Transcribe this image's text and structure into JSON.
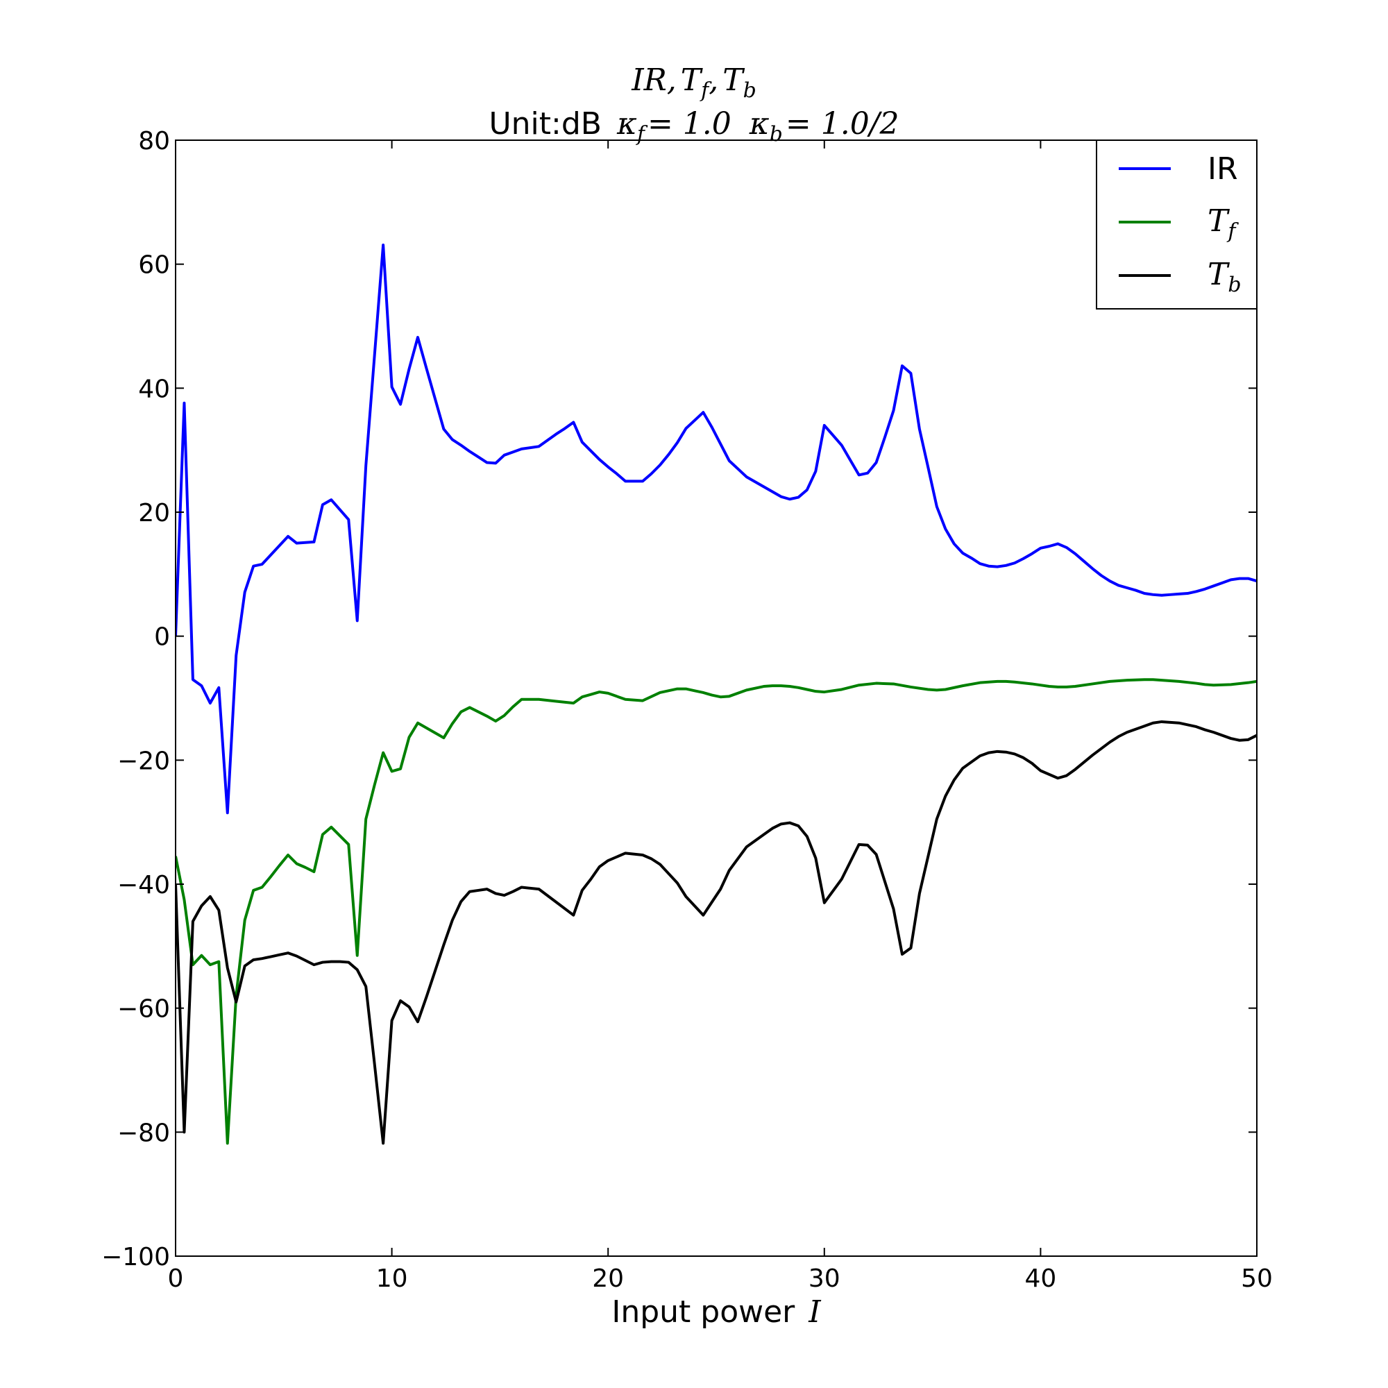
{
  "chart_data": {
    "type": "line",
    "title_line1": {
      "parts": [
        "IR",
        ",",
        "T",
        "f",
        ",",
        "T",
        "b"
      ]
    },
    "title_line2": {
      "prefix": "Unit:dB",
      "kf": "κ",
      "kf_sub": "f",
      "kf_val": "= 1.0",
      "kb": "κ",
      "kb_sub": "b",
      "kb_val": "= 1.0/2"
    },
    "xlabel_text": "Input power",
    "xlabel_math": "I",
    "xlim": [
      0,
      50
    ],
    "ylim": [
      -100,
      80
    ],
    "xticks": [
      0,
      10,
      20,
      30,
      40,
      50
    ],
    "yticks": [
      80,
      60,
      40,
      20,
      0,
      -20,
      -40,
      -60,
      -80,
      -100
    ],
    "ytick_labels": [
      "80",
      "60",
      "40",
      "20",
      "0",
      "−20",
      "−40",
      "−60",
      "−80",
      "−100"
    ],
    "legend_position": "top-right",
    "series": [
      {
        "name": "IR",
        "legend_main": "IR",
        "legend_sub": "",
        "color": "#0000ff",
        "x": [
          0,
          0.4,
          0.8,
          1.2,
          1.6,
          2.0,
          2.4,
          2.8,
          3.2,
          3.6,
          4.0,
          4.4,
          4.8,
          5.2,
          5.6,
          6.0,
          6.4,
          6.8,
          7.2,
          7.6,
          8.0,
          8.4,
          8.8,
          9.2,
          9.6,
          10.0,
          10.4,
          10.8,
          11.2,
          11.6,
          12.0,
          12.4,
          12.8,
          13.2,
          13.6,
          14.0,
          14.4,
          14.8,
          15.2,
          15.6,
          16.0,
          16.4,
          16.8,
          17.2,
          17.6,
          18.0,
          18.4,
          18.8,
          19.2,
          19.6,
          20.0,
          20.4,
          20.8,
          21.2,
          21.6,
          22.0,
          22.4,
          22.8,
          23.2,
          23.6,
          24.0,
          24.4,
          24.8,
          25.2,
          25.6,
          26.0,
          26.4,
          26.8,
          27.2,
          27.6,
          28.0,
          28.4,
          28.8,
          29.2,
          29.6,
          30.0,
          30.4,
          30.8,
          31.2,
          31.6,
          32.0,
          32.4,
          32.8,
          33.2,
          33.6,
          34.0,
          34.4,
          34.8,
          35.2,
          35.6,
          36.0,
          36.4,
          36.8,
          37.2,
          37.6,
          38.0,
          38.4,
          38.8,
          39.2,
          39.6,
          40.0,
          40.4,
          40.8,
          41.2,
          41.6,
          42.0,
          42.4,
          42.8,
          43.2,
          43.6,
          44.0,
          44.4,
          44.8,
          45.2,
          45.6,
          46.0,
          46.4,
          46.8,
          47.2,
          47.6,
          48.0,
          48.4,
          48.8,
          49.2,
          49.6,
          50.0
        ],
        "y": [
          0,
          37.6,
          -7,
          -8,
          -10.8,
          -8.3,
          -28.5,
          -3.1,
          7.1,
          11.3,
          11.6,
          13.1,
          14.6,
          16.1,
          15.0,
          15.1,
          15.2,
          21.2,
          22.0,
          20.4,
          18.8,
          2.5,
          27.5,
          45.3,
          63.1,
          40.2,
          37.4,
          43.1,
          48.2,
          43.2,
          38.3,
          33.4,
          31.7,
          30.8,
          29.8,
          28.9,
          28.0,
          27.9,
          29.2,
          29.7,
          30.2,
          30.4,
          30.6,
          31.6,
          32.6,
          33.5,
          34.5,
          31.3,
          29.9,
          28.5,
          27.3,
          26.2,
          25.0,
          25.0,
          25.0,
          26.2,
          27.6,
          29.3,
          31.2,
          33.5,
          34.8,
          36.1,
          33.7,
          31.0,
          28.3,
          27.0,
          25.7,
          24.9,
          24.1,
          23.3,
          22.5,
          22.1,
          22.4,
          23.6,
          26.6,
          34.0,
          32.4,
          30.8,
          28.4,
          26.0,
          26.3,
          28.0,
          32.1,
          36.4,
          43.6,
          42.4,
          33.4,
          27.2,
          20.9,
          17.3,
          14.9,
          13.4,
          12.6,
          11.7,
          11.3,
          11.2,
          11.4,
          11.8,
          12.5,
          13.3,
          14.2,
          14.5,
          14.9,
          14.3,
          13.3,
          12.1,
          10.9,
          9.8,
          8.9,
          8.2,
          7.8,
          7.4,
          6.9,
          6.7,
          6.6,
          6.7,
          6.8,
          6.9,
          7.2,
          7.6,
          8.1,
          8.6,
          9.1,
          9.3,
          9.3,
          8.9
        ]
      },
      {
        "name": "T_f",
        "legend_main": "T",
        "legend_sub": "f",
        "color": "#008000",
        "x": [
          0,
          0.4,
          0.8,
          1.2,
          1.6,
          2.0,
          2.4,
          2.8,
          3.2,
          3.6,
          4.0,
          4.4,
          4.8,
          5.2,
          5.6,
          6.0,
          6.4,
          6.8,
          7.2,
          7.6,
          8.0,
          8.4,
          8.8,
          9.2,
          9.6,
          10.0,
          10.4,
          10.8,
          11.2,
          11.6,
          12.0,
          12.4,
          12.8,
          13.2,
          13.6,
          14.0,
          14.4,
          14.8,
          15.2,
          15.6,
          16.0,
          16.8,
          17.6,
          18.4,
          18.8,
          19.2,
          19.6,
          20.0,
          20.8,
          21.6,
          22.4,
          23.2,
          23.6,
          24.0,
          24.4,
          24.8,
          25.2,
          25.6,
          26.4,
          27.2,
          27.6,
          28.0,
          28.4,
          28.8,
          29.2,
          29.6,
          30.0,
          30.8,
          31.6,
          32.4,
          33.2,
          34.0,
          34.8,
          35.2,
          35.6,
          36.4,
          37.2,
          38.0,
          38.4,
          38.8,
          39.6,
          40.4,
          40.8,
          41.2,
          41.6,
          42.4,
          43.2,
          44.0,
          44.8,
          45.2,
          45.6,
          46.4,
          47.2,
          47.6,
          48.0,
          48.8,
          49.6,
          50.0
        ],
        "y": [
          -35.5,
          -42.5,
          -53.0,
          -51.5,
          -53.0,
          -52.5,
          -81.8,
          -58.0,
          -45.8,
          -41.0,
          -40.5,
          -38.8,
          -37.0,
          -35.3,
          -36.7,
          -37.3,
          -38.0,
          -32.0,
          -30.8,
          -32.2,
          -33.6,
          -51.5,
          -29.5,
          -24.0,
          -18.8,
          -21.8,
          -21.4,
          -16.3,
          -14.0,
          -14.8,
          -15.6,
          -16.4,
          -14.1,
          -12.2,
          -11.5,
          -12.2,
          -12.9,
          -13.7,
          -12.8,
          -11.4,
          -10.2,
          -10.2,
          -10.5,
          -10.8,
          -9.8,
          -9.4,
          -9.0,
          -9.2,
          -10.2,
          -10.4,
          -9.1,
          -8.5,
          -8.5,
          -8.8,
          -9.1,
          -9.5,
          -9.8,
          -9.7,
          -8.7,
          -8.1,
          -8.0,
          -8.0,
          -8.1,
          -8.3,
          -8.6,
          -8.9,
          -9.0,
          -8.6,
          -7.9,
          -7.6,
          -7.7,
          -8.2,
          -8.6,
          -8.7,
          -8.6,
          -8.0,
          -7.5,
          -7.3,
          -7.3,
          -7.4,
          -7.7,
          -8.1,
          -8.2,
          -8.2,
          -8.1,
          -7.7,
          -7.3,
          -7.1,
          -7.0,
          -7.0,
          -7.1,
          -7.3,
          -7.6,
          -7.8,
          -7.9,
          -7.8,
          -7.5,
          -7.3
        ]
      },
      {
        "name": "T_b",
        "legend_main": "T",
        "legend_sub": "b",
        "color": "#000000",
        "x": [
          0,
          0.4,
          0.8,
          1.2,
          1.6,
          2.0,
          2.4,
          2.8,
          3.2,
          3.6,
          4.0,
          4.4,
          4.8,
          5.2,
          5.6,
          6.0,
          6.4,
          6.8,
          7.2,
          7.6,
          8.0,
          8.4,
          8.8,
          9.2,
          9.6,
          10.0,
          10.4,
          10.8,
          11.2,
          11.6,
          12.0,
          12.4,
          12.8,
          13.2,
          13.6,
          14.0,
          14.4,
          14.8,
          15.2,
          15.6,
          16.0,
          16.8,
          17.6,
          18.4,
          18.8,
          19.2,
          19.6,
          20.0,
          20.8,
          21.6,
          22.0,
          22.4,
          22.8,
          23.2,
          23.6,
          24.0,
          24.4,
          24.8,
          25.2,
          25.6,
          26.4,
          27.2,
          27.6,
          28.0,
          28.4,
          28.8,
          29.2,
          29.6,
          30.0,
          30.8,
          31.6,
          32.0,
          32.4,
          33.2,
          33.6,
          34.0,
          34.4,
          34.8,
          35.2,
          35.6,
          36.0,
          36.4,
          37.2,
          37.6,
          38.0,
          38.4,
          38.8,
          39.2,
          39.6,
          40.0,
          40.8,
          41.2,
          41.6,
          42.4,
          43.2,
          43.6,
          44.0,
          44.8,
          45.2,
          45.6,
          46.4,
          47.2,
          47.6,
          48.0,
          48.8,
          49.2,
          49.6,
          50.0
        ],
        "y": [
          -40,
          -80,
          -46.0,
          -43.5,
          -42.0,
          -44.2,
          -53.5,
          -59.0,
          -53.2,
          -52.2,
          -52.0,
          -51.7,
          -51.4,
          -51.1,
          -51.6,
          -52.3,
          -53.0,
          -52.6,
          -52.5,
          -52.5,
          -52.6,
          -53.8,
          -56.5,
          -69.0,
          -81.8,
          -62.0,
          -58.8,
          -59.8,
          -62.2,
          -58.2,
          -54.0,
          -49.8,
          -45.8,
          -42.8,
          -41.2,
          -41.0,
          -40.8,
          -41.5,
          -41.8,
          -41.2,
          -40.5,
          -40.8,
          -42.9,
          -45.0,
          -41.0,
          -39.2,
          -37.2,
          -36.2,
          -35.0,
          -35.3,
          -35.9,
          -36.8,
          -38.3,
          -39.8,
          -42.0,
          -43.5,
          -45.0,
          -42.9,
          -40.8,
          -37.8,
          -34.0,
          -32.0,
          -31.0,
          -30.3,
          -30.1,
          -30.6,
          -32.3,
          -35.8,
          -43.0,
          -39.2,
          -33.6,
          -33.7,
          -35.2,
          -44.0,
          -51.3,
          -50.3,
          -41.5,
          -35.5,
          -29.5,
          -25.8,
          -23.2,
          -21.3,
          -19.3,
          -18.8,
          -18.6,
          -18.7,
          -19.0,
          -19.6,
          -20.5,
          -21.7,
          -22.9,
          -22.5,
          -21.5,
          -19.2,
          -17.1,
          -16.2,
          -15.5,
          -14.5,
          -14.0,
          -13.8,
          -14.0,
          -14.6,
          -15.1,
          -15.5,
          -16.5,
          -16.8,
          -16.7,
          -16.0
        ]
      }
    ]
  }
}
